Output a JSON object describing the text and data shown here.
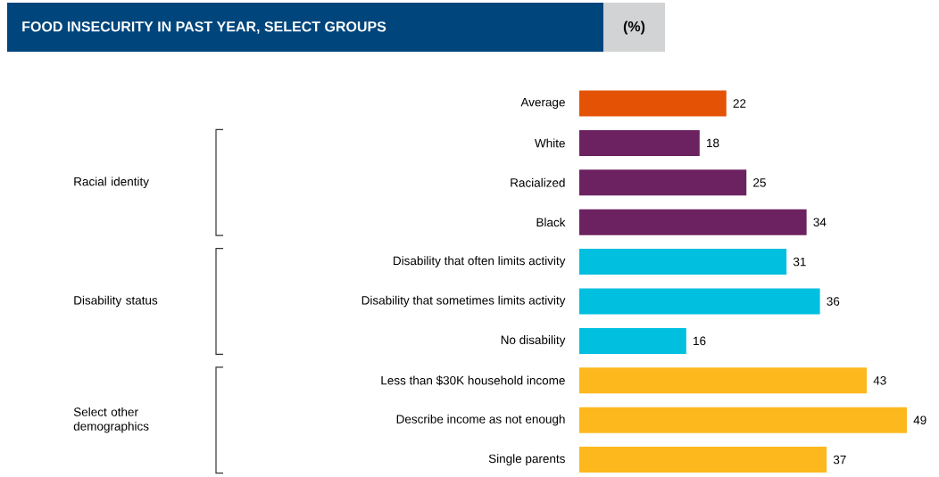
{
  "chart_data": {
    "type": "bar",
    "orientation": "horizontal",
    "title": "FOOD INSECURITY IN PAST YEAR, SELECT GROUPS",
    "subtitle": "(%)",
    "categories": [
      "Average",
      "White",
      "Racialized",
      "Black",
      "Disability that often limits activity",
      "Disability that sometimes limits activity",
      "No disability",
      "Less than $30K household income",
      "Describe income as not enough",
      "Single parents"
    ],
    "values": [
      22,
      18,
      25,
      34,
      31,
      36,
      16,
      43,
      49,
      37
    ],
    "colors": [
      "#e35205",
      "#6c2160",
      "#6c2160",
      "#6c2160",
      "#00bfdf",
      "#00bfdf",
      "#00bfdf",
      "#fdb81e",
      "#fdb81e",
      "#fdb81e"
    ],
    "data_labels": true,
    "annotations": [
      "Racial identity",
      "Disability status",
      "Select other demographics"
    ]
  }
}
